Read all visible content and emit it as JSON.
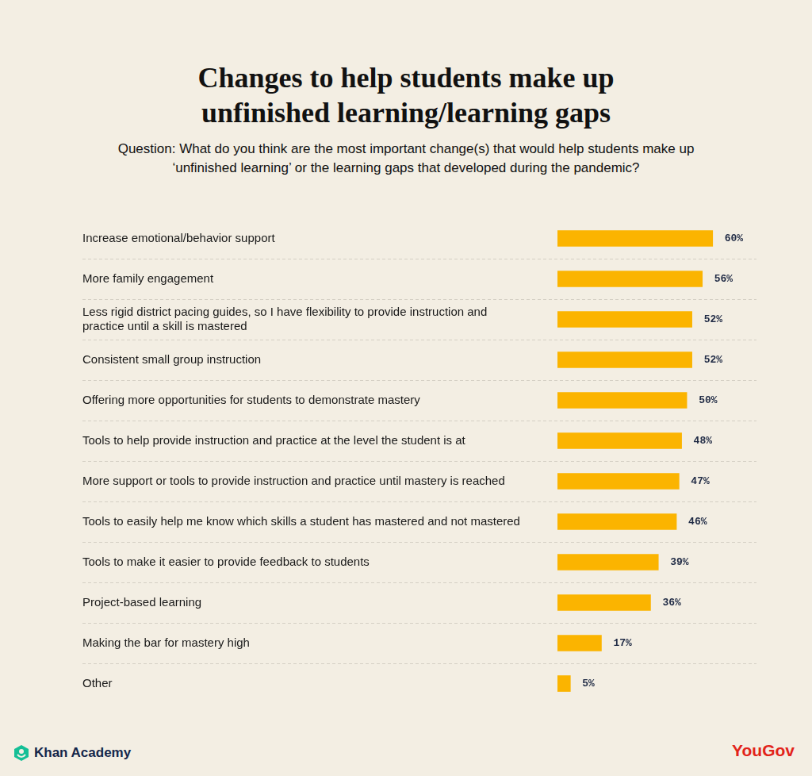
{
  "chart_data": {
    "type": "bar",
    "orientation": "horizontal",
    "title": "Changes to help students make up unfinished learning/learning gaps",
    "subtitle": "Question: What do you think are the most important change(s) that would help students make up ‘unfinished learning’ or the learning gaps that developed during the pandemic?",
    "categories": [
      "Increase emotional/behavior support",
      "More family engagement",
      "Less rigid district pacing guides, so I have flexibility to provide instruction and practice until a skill is mastered",
      "Consistent small group instruction",
      "Offering more opportunities for students to demonstrate mastery",
      "Tools to help provide instruction and practice at the level the student is at",
      "More support or tools to provide instruction and practice until mastery is reached",
      "Tools to easily help me know which skills a student has mastered and not mastered",
      "Tools to make it easier to provide feedback to students",
      "Project-based learning",
      "Making the bar for mastery high",
      "Other"
    ],
    "values": [
      60,
      56,
      52,
      52,
      50,
      48,
      47,
      46,
      39,
      36,
      17,
      5
    ],
    "value_labels": [
      "60%",
      "56%",
      "52%",
      "52%",
      "50%",
      "48%",
      "47%",
      "46%",
      "39%",
      "36%",
      "17%",
      "5%"
    ],
    "color": "#fbb400",
    "xlim": [
      0,
      80
    ],
    "grid": false,
    "data_labels": true,
    "tick_labels": "y"
  },
  "footer": {
    "left": "Khan Academy",
    "right": "YouGov"
  }
}
